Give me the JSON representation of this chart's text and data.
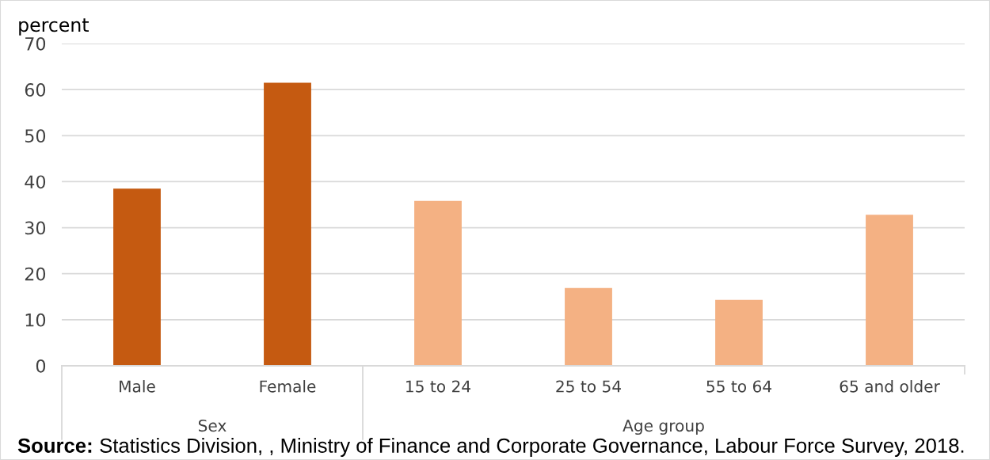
{
  "chart_data": {
    "type": "bar",
    "ylabel": "percent",
    "categories": [
      "Male",
      "Female",
      "15 to 24",
      "25 to 54",
      "55 to 64",
      "65 and older"
    ],
    "values": [
      38.5,
      61.5,
      35.8,
      16.9,
      14.3,
      32.8
    ],
    "colors": [
      "#c55a11",
      "#c55a11",
      "#f4b183",
      "#f4b183",
      "#f4b183",
      "#f4b183"
    ],
    "ylim": [
      0,
      70
    ],
    "yticks": [
      0,
      10,
      20,
      30,
      40,
      50,
      60,
      70
    ],
    "grid": "y",
    "annotations": [
      "Sex",
      "Age group",
      "Source: Statistics Division, , Ministry of Finance and Corporate Governance, Labour Force Survey, 2018."
    ]
  }
}
